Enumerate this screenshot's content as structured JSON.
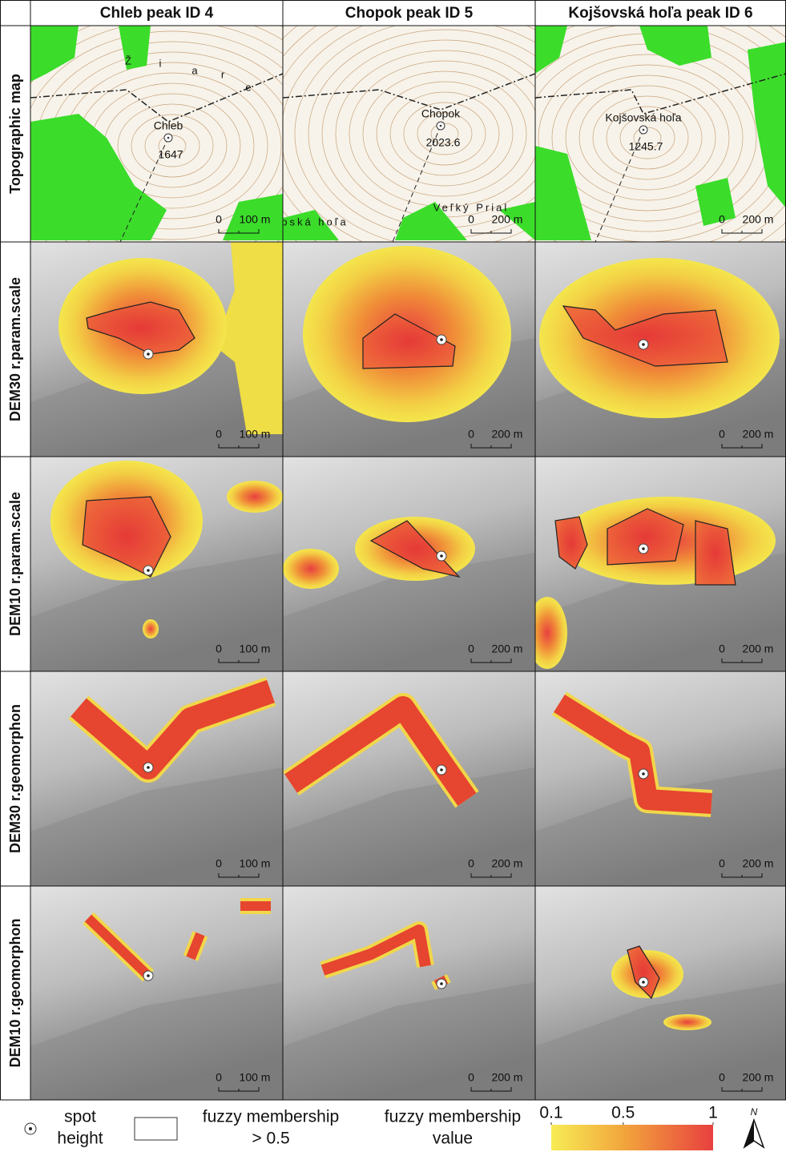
{
  "columns": [
    {
      "title": "Chleb peak ID 4",
      "peak": "Chleb",
      "elevation": 1647,
      "map_texts": [
        "Ž",
        "i",
        "a",
        "r",
        "e"
      ],
      "scale_zero": 0,
      "scale_length": "100 m"
    },
    {
      "title": "Chopok peak ID 5",
      "peak": "Chopok",
      "elevation": 2023.6,
      "map_texts": [
        "pská hoľa",
        "Veľký Prial"
      ],
      "scale_zero": 0,
      "scale_length": "200 m"
    },
    {
      "title": "Kojšovská hoľa peak ID 6",
      "peak": "Kojšovská hoľa",
      "elevation": 1245.7,
      "scale_zero": 0,
      "scale_length": "200 m"
    }
  ],
  "rows": [
    {
      "label": "Topographic map"
    },
    {
      "label": "DEM30 r.param.scale"
    },
    {
      "label": "DEM10 r.param.scale"
    },
    {
      "label": "DEM30 r.geomorphon"
    },
    {
      "label": "DEM10 r.geomorphon"
    }
  ],
  "legend": {
    "spot_height": [
      "spot",
      "height"
    ],
    "outline": [
      "fuzzy membership",
      "> 0.5"
    ],
    "colorbar_title": [
      "fuzzy membership",
      "value"
    ],
    "colorbar": {
      "range": [
        0.1,
        1
      ],
      "ticks": [
        0.1,
        0.5,
        1
      ]
    },
    "north": "N"
  }
}
